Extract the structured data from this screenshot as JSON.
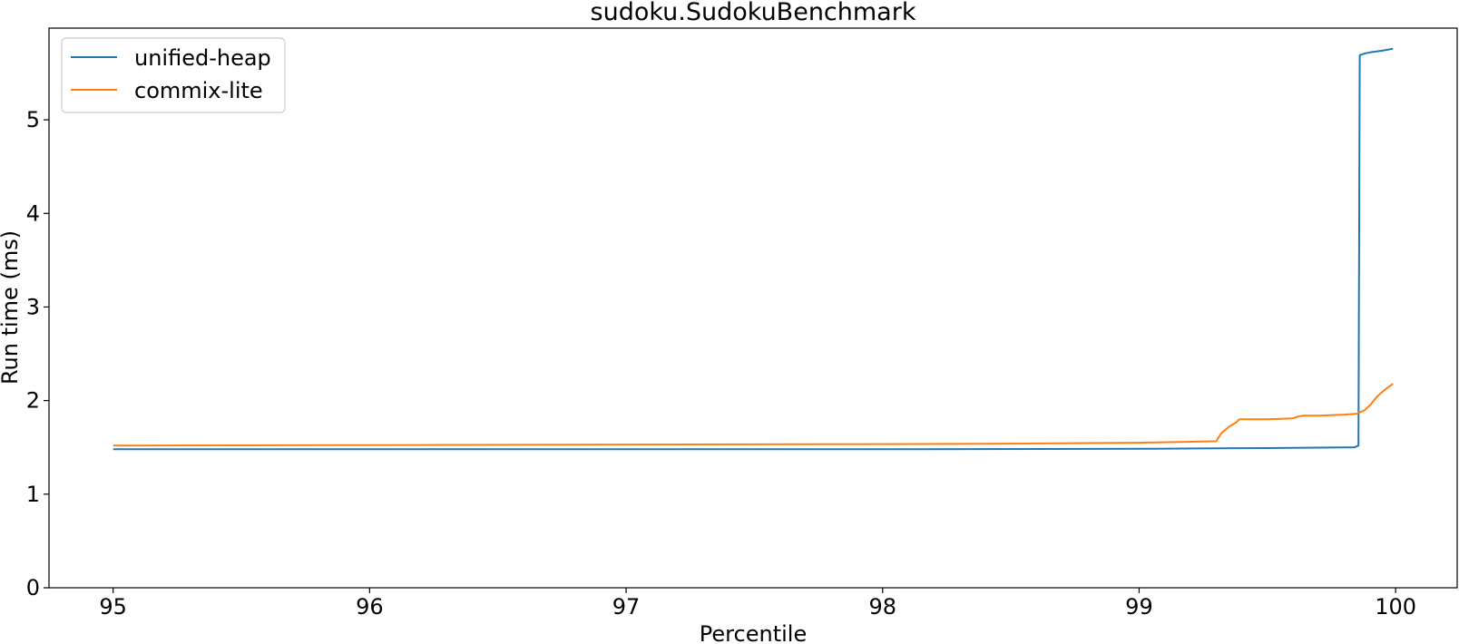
{
  "chart_data": {
    "type": "line",
    "title": "sudoku.SudokuBenchmark",
    "xlabel": "Percentile",
    "ylabel": "Run time (ms)",
    "xlim": [
      94.75,
      100.24
    ],
    "ylim": [
      0,
      5.98
    ],
    "xticks": [
      95,
      96,
      97,
      98,
      99,
      100
    ],
    "yticks": [
      0,
      1,
      2,
      3,
      4,
      5
    ],
    "xtick_labels": [
      "95",
      "96",
      "97",
      "98",
      "99",
      "100"
    ],
    "ytick_labels": [
      "0",
      "1",
      "2",
      "3",
      "4",
      "5"
    ],
    "legend_position": "top-left",
    "grid": false,
    "series": [
      {
        "name": "unified-heap",
        "color": "#1f77b4",
        "x": [
          95.0,
          96.0,
          97.0,
          98.0,
          99.0,
          99.3,
          99.6,
          99.8,
          99.84,
          99.855,
          99.86,
          99.88,
          99.9,
          99.95,
          99.99
        ],
        "y": [
          1.48,
          1.48,
          1.48,
          1.48,
          1.485,
          1.49,
          1.495,
          1.5,
          1.5,
          1.52,
          5.69,
          5.71,
          5.72,
          5.74,
          5.76
        ]
      },
      {
        "name": "commix-lite",
        "color": "#ff7f0e",
        "x": [
          95.0,
          96.0,
          97.0,
          98.0,
          98.5,
          99.0,
          99.2,
          99.3,
          99.32,
          99.35,
          99.38,
          99.39,
          99.5,
          99.6,
          99.62,
          99.64,
          99.7,
          99.8,
          99.85,
          99.88,
          99.9,
          99.93,
          99.96,
          99.99
        ],
        "y": [
          1.52,
          1.525,
          1.53,
          1.535,
          1.54,
          1.55,
          1.56,
          1.565,
          1.65,
          1.72,
          1.77,
          1.8,
          1.8,
          1.81,
          1.83,
          1.84,
          1.84,
          1.85,
          1.86,
          1.9,
          1.95,
          2.05,
          2.12,
          2.18
        ]
      }
    ]
  }
}
